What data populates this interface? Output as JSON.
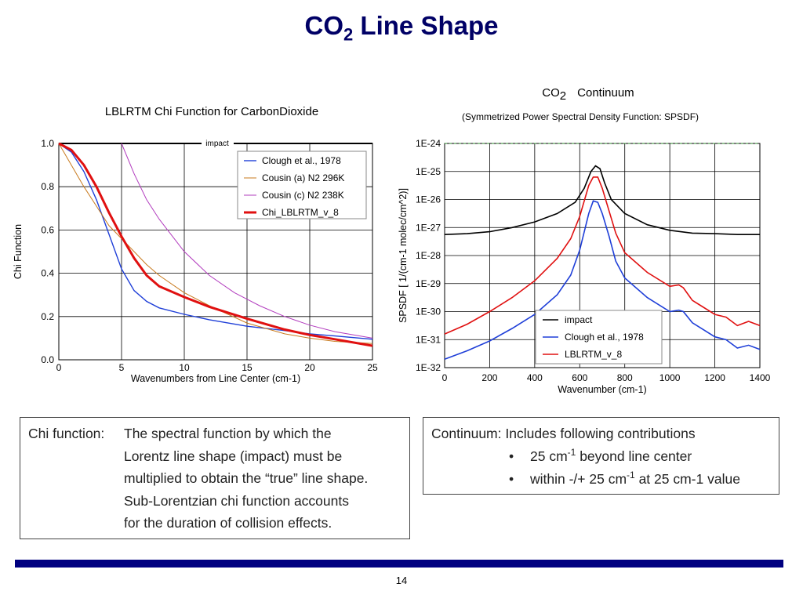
{
  "title": {
    "main": "CO",
    "sub": "2",
    "rest": " Line Shape"
  },
  "left_chart_title": "LBLRTM Chi Function for CarbonDioxide",
  "right_chart_title": {
    "co": "CO",
    "sub": "2",
    "rest": "Continuum"
  },
  "right_chart_subtitle": "(Symmetrized Power Spectral Density Function: SPSDF)",
  "chart_data": [
    {
      "type": "line",
      "title": "LBLRTM Chi Function for CarbonDioxide",
      "xlabel": "Wavenumbers from Line Center (cm-1)",
      "ylabel": "Chi Function",
      "xlim": [
        0,
        25
      ],
      "ylim": [
        0,
        1
      ],
      "x_ticks": [
        "0",
        "5",
        "10",
        "15",
        "20",
        "25"
      ],
      "y_ticks": [
        "0.0",
        "0.2",
        "0.4",
        "0.6",
        "0.8",
        "1.0"
      ],
      "grid": true,
      "legend_position": "top-right",
      "annotations": [
        "impact"
      ],
      "series": [
        {
          "name": "impact",
          "color": "#000000",
          "points": [
            [
              0,
              1.0
            ],
            [
              25,
              1.0
            ]
          ]
        },
        {
          "name": "Clough et al., 1978",
          "color": "#1f3fd8",
          "points": [
            [
              0,
              1.0
            ],
            [
              1,
              0.96
            ],
            [
              2,
              0.87
            ],
            [
              3,
              0.74
            ],
            [
              4,
              0.58
            ],
            [
              5,
              0.42
            ],
            [
              6,
              0.32
            ],
            [
              7,
              0.27
            ],
            [
              8,
              0.24
            ],
            [
              10,
              0.21
            ],
            [
              12,
              0.185
            ],
            [
              15,
              0.155
            ],
            [
              18,
              0.135
            ],
            [
              20,
              0.12
            ],
            [
              22,
              0.11
            ],
            [
              25,
              0.095
            ]
          ]
        },
        {
          "name": "Cousin (a) N2 296K",
          "color": "#c87a1e",
          "points": [
            [
              0,
              1.0
            ],
            [
              1,
              0.9
            ],
            [
              2,
              0.8
            ],
            [
              3,
              0.71
            ],
            [
              4,
              0.62
            ],
            [
              5,
              0.56
            ],
            [
              6,
              0.5
            ],
            [
              7,
              0.44
            ],
            [
              8,
              0.39
            ],
            [
              10,
              0.31
            ],
            [
              12,
              0.25
            ],
            [
              15,
              0.17
            ],
            [
              18,
              0.12
            ],
            [
              20,
              0.1
            ],
            [
              22,
              0.085
            ],
            [
              25,
              0.075
            ]
          ]
        },
        {
          "name": "Cousin (c) N2 238K",
          "color": "#b23cbe",
          "points": [
            [
              5,
              1.0
            ],
            [
              6,
              0.86
            ],
            [
              7,
              0.74
            ],
            [
              8,
              0.65
            ],
            [
              10,
              0.5
            ],
            [
              12,
              0.39
            ],
            [
              14,
              0.31
            ],
            [
              16,
              0.25
            ],
            [
              18,
              0.2
            ],
            [
              20,
              0.16
            ],
            [
              22,
              0.13
            ],
            [
              25,
              0.1
            ]
          ]
        },
        {
          "name": "Chi_LBLRTM_v_8",
          "color": "#e01010",
          "points": [
            [
              0,
              1.0
            ],
            [
              1,
              0.97
            ],
            [
              2,
              0.9
            ],
            [
              3,
              0.8
            ],
            [
              4,
              0.68
            ],
            [
              5,
              0.57
            ],
            [
              6,
              0.47
            ],
            [
              7,
              0.39
            ],
            [
              8,
              0.34
            ],
            [
              10,
              0.29
            ],
            [
              12,
              0.245
            ],
            [
              15,
              0.19
            ],
            [
              18,
              0.14
            ],
            [
              20,
              0.115
            ],
            [
              22,
              0.095
            ],
            [
              25,
              0.065
            ]
          ]
        }
      ]
    },
    {
      "type": "line",
      "title": "CO2 Continuum",
      "subtitle": "(Symmetrized Power Spectral Density Function: SPSDF)",
      "xlabel": "Wavenumber     (cm-1)",
      "ylabel": "SPSDF  [ 1/(cm-1   molec/cm^2)]",
      "xlim": [
        0,
        1400
      ],
      "ylim_log10": [
        -32,
        -24
      ],
      "x_ticks": [
        "0",
        "200",
        "400",
        "600",
        "800",
        "1000",
        "1200",
        "1400"
      ],
      "y_ticks": [
        "1E-32",
        "1E-31",
        "1E-30",
        "1E-29",
        "1E-28",
        "1E-27",
        "1E-26",
        "1E-25",
        "1E-24"
      ],
      "y_scale": "log",
      "grid": true,
      "legend_position": "bottom-right",
      "series": [
        {
          "name": "impact",
          "color": "#000000",
          "points_log10": [
            [
              0,
              -27.25
            ],
            [
              100,
              -27.22
            ],
            [
              200,
              -27.15
            ],
            [
              300,
              -27.0
            ],
            [
              400,
              -26.8
            ],
            [
              500,
              -26.5
            ],
            [
              580,
              -26.1
            ],
            [
              620,
              -25.6
            ],
            [
              650,
              -25.0
            ],
            [
              670,
              -24.8
            ],
            [
              690,
              -24.9
            ],
            [
              710,
              -25.4
            ],
            [
              740,
              -26.0
            ],
            [
              800,
              -26.5
            ],
            [
              900,
              -26.9
            ],
            [
              1000,
              -27.1
            ],
            [
              1100,
              -27.2
            ],
            [
              1200,
              -27.22
            ],
            [
              1300,
              -27.25
            ],
            [
              1400,
              -27.25
            ]
          ]
        },
        {
          "name": "Clough et al., 1978",
          "color": "#1f3fd8",
          "points_log10": [
            [
              0,
              -31.7
            ],
            [
              100,
              -31.4
            ],
            [
              200,
              -31.05
            ],
            [
              300,
              -30.6
            ],
            [
              400,
              -30.1
            ],
            [
              500,
              -29.4
            ],
            [
              560,
              -28.7
            ],
            [
              600,
              -27.8
            ],
            [
              640,
              -26.5
            ],
            [
              660,
              -26.05
            ],
            [
              680,
              -26.1
            ],
            [
              700,
              -26.5
            ],
            [
              730,
              -27.3
            ],
            [
              760,
              -28.2
            ],
            [
              800,
              -28.8
            ],
            [
              900,
              -29.5
            ],
            [
              1000,
              -30.0
            ],
            [
              1040,
              -29.95
            ],
            [
              1060,
              -30.0
            ],
            [
              1100,
              -30.4
            ],
            [
              1200,
              -30.9
            ],
            [
              1250,
              -31.0
            ],
            [
              1300,
              -31.3
            ],
            [
              1350,
              -31.2
            ],
            [
              1400,
              -31.35
            ]
          ]
        },
        {
          "name": "LBLRTM_v_8",
          "color": "#e01010",
          "points_log10": [
            [
              0,
              -30.8
            ],
            [
              100,
              -30.45
            ],
            [
              200,
              -30.0
            ],
            [
              300,
              -29.5
            ],
            [
              400,
              -28.9
            ],
            [
              500,
              -28.1
            ],
            [
              560,
              -27.4
            ],
            [
              600,
              -26.6
            ],
            [
              640,
              -25.5
            ],
            [
              660,
              -25.2
            ],
            [
              680,
              -25.2
            ],
            [
              700,
              -25.6
            ],
            [
              730,
              -26.4
            ],
            [
              760,
              -27.2
            ],
            [
              800,
              -27.9
            ],
            [
              900,
              -28.6
            ],
            [
              1000,
              -29.1
            ],
            [
              1040,
              -29.05
            ],
            [
              1060,
              -29.15
            ],
            [
              1100,
              -29.6
            ],
            [
              1200,
              -30.1
            ],
            [
              1250,
              -30.2
            ],
            [
              1300,
              -30.5
            ],
            [
              1350,
              -30.35
            ],
            [
              1400,
              -30.5
            ]
          ]
        }
      ]
    }
  ],
  "left_box": {
    "label": "Chi function:  ",
    "lines": [
      "The spectral function by which the",
      "Lorentz line shape (impact) must be",
      "multiplied to obtain the “true” line shape.",
      "Sub-Lorentzian chi function accounts",
      "for the duration of collision effects."
    ]
  },
  "right_box": {
    "label": "Continuum:  Includes following contributions",
    "bullet1": {
      "pre": "25 cm",
      "sup": "-1",
      "post": " beyond line center"
    },
    "bullet2": {
      "pre": "within -/+ 25 cm",
      "sup": "-1",
      "post": " at 25 cm-1 value"
    },
    "bullet_char": "•"
  },
  "page_number": "14"
}
